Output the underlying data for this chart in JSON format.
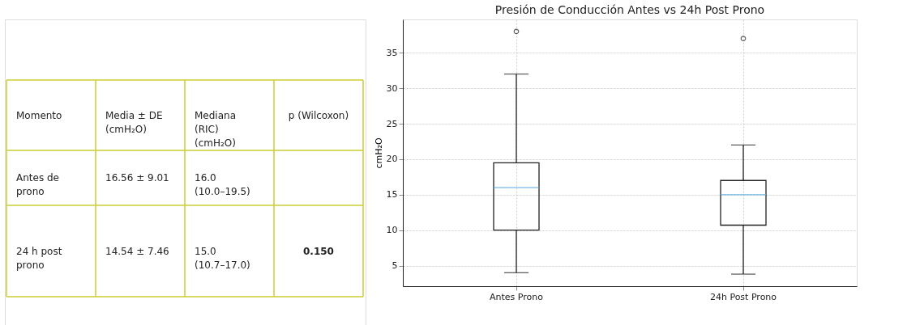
{
  "chart_data": [
    {
      "type": "other",
      "annotations": [
        "Momento",
        "Media ± DE (cmH₂O)",
        "Mediana (RIC) (cmH₂O)",
        "p (Wilcoxon)",
        "Antes de prono",
        "16.56 ± 9.01",
        "16.0 (10.0–19.5)",
        null,
        "24 h post prono",
        "14.54 ± 7.46",
        "15.0 (10.7–17.0)",
        "0.150"
      ]
    },
    {
      "type": "box",
      "title": "Presión de Conducción Antes vs 24h Post Prono",
      "ylabel": "cmH₂O",
      "categories": [
        "Antes Prono",
        "24h Post Prono"
      ],
      "boxes": [
        {
          "low": 4,
          "q1": 10,
          "median": 16,
          "q3": 19.5,
          "high": 32,
          "outliers": [
            38
          ]
        },
        {
          "low": 3.8,
          "q1": 10.7,
          "median": 15,
          "q3": 17,
          "high": 22,
          "outliers": [
            37
          ]
        }
      ],
      "color": "#5dade2",
      "ylim": [
        2.1,
        39.7
      ],
      "yticks": [
        5,
        10,
        15,
        20,
        25,
        30,
        35
      ],
      "grid": true
    }
  ]
}
